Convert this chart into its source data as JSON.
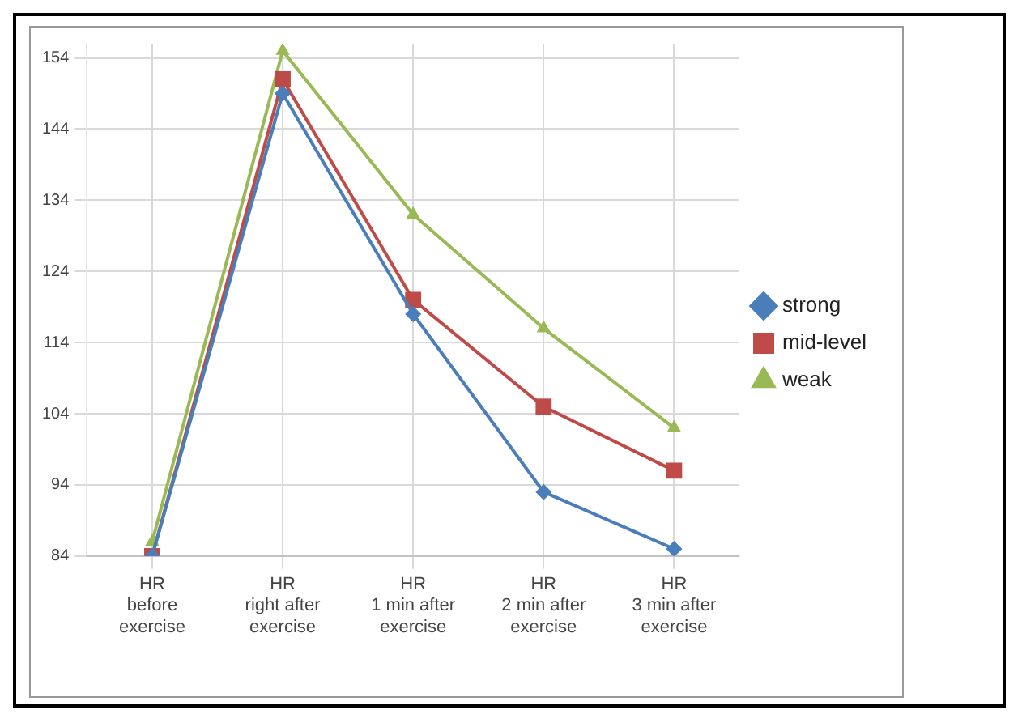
{
  "chart_data": {
    "type": "line",
    "categories": [
      "HR\nbefore\nexercise",
      "HR\nright after\nexercise",
      "HR\n1 min after\nexercise",
      "HR\n2 min after\nexercise",
      "HR\n3 min after\nexercise"
    ],
    "series": [
      {
        "name": "strong",
        "color": "#4a7ebb",
        "marker": "diamond",
        "values": [
          84,
          149,
          118,
          93,
          85
        ]
      },
      {
        "name": "mid-level",
        "color": "#be4b48",
        "marker": "square",
        "values": [
          84,
          151,
          120,
          105,
          96
        ]
      },
      {
        "name": "weak",
        "color": "#98b954",
        "marker": "triangle",
        "values": [
          86,
          155,
          132,
          116,
          102
        ]
      }
    ],
    "ylim": [
      84,
      156
    ],
    "yticks": [
      84,
      94,
      104,
      114,
      124,
      134,
      144,
      154
    ],
    "grid": true,
    "legend": "right",
    "line_style": "solid"
  }
}
